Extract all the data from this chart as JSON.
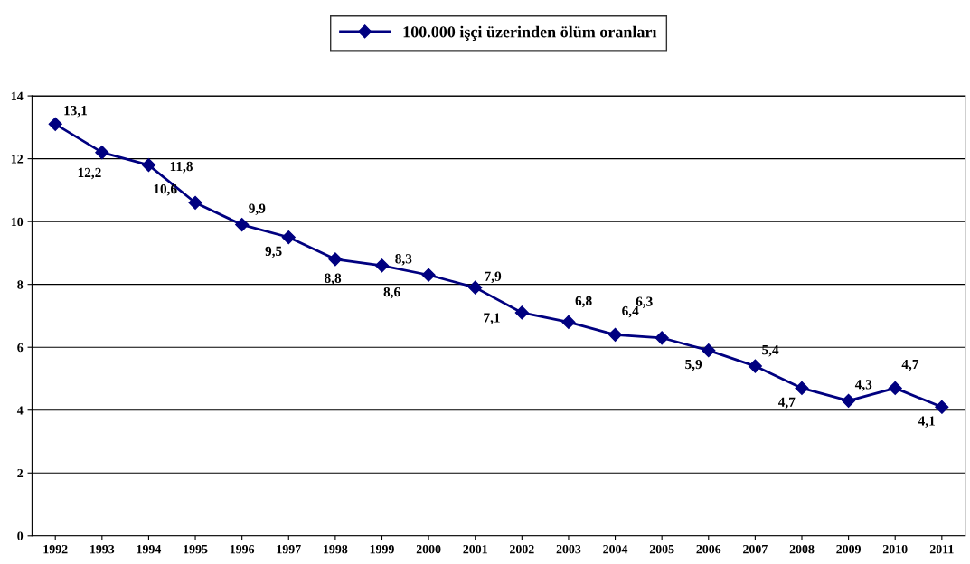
{
  "chart_data": {
    "type": "line",
    "categories": [
      "1992",
      "1993",
      "1994",
      "1995",
      "1996",
      "1997",
      "1998",
      "1999",
      "2000",
      "2001",
      "2002",
      "2003",
      "2004",
      "2005",
      "2006",
      "2007",
      "2008",
      "2009",
      "2010",
      "2011"
    ],
    "series": [
      {
        "name": "100.000 işçi üzerinden ölüm oranları",
        "color": "#000080",
        "values": [
          13.1,
          12.2,
          11.8,
          10.6,
          9.9,
          9.5,
          8.8,
          8.6,
          8.3,
          7.9,
          7.1,
          6.8,
          6.4,
          6.3,
          5.9,
          5.4,
          4.7,
          4.3,
          4.7,
          4.1
        ],
        "value_labels": [
          "13,1",
          "12,2",
          "11,8",
          "10,6",
          "9,9",
          "9,5",
          "8,8",
          "8,6",
          "8,3",
          "7,9",
          "7,1",
          "6,8",
          "6,4",
          "6,3",
          "5,9",
          "5,4",
          "4,7",
          "4,3",
          "4,7",
          "4,1"
        ]
      }
    ],
    "ylim": [
      0,
      14
    ],
    "yticks": [
      0,
      2,
      4,
      6,
      8,
      10,
      12,
      14
    ],
    "grid": "y",
    "legend": "top",
    "marker": "diamond",
    "line_style": "solid"
  }
}
